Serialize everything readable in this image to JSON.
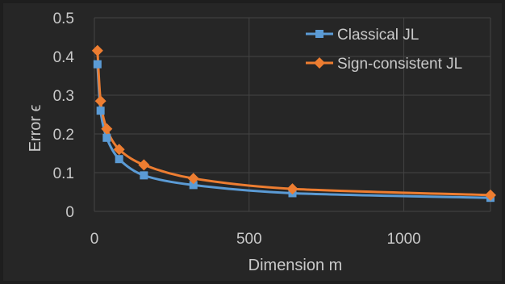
{
  "colors": {
    "background": "#262626",
    "outer_background": "#1e1e1e",
    "grid": "#444444",
    "text": "#c9c9c9"
  },
  "chart_data": {
    "type": "line",
    "title": "",
    "xlabel": "Dimension m",
    "ylabel": "Error ϵ",
    "xlim": [
      0,
      1280
    ],
    "ylim": [
      0,
      0.5
    ],
    "x_ticks": [
      0,
      500,
      1000
    ],
    "y_ticks": [
      0,
      0.1,
      0.2,
      0.3,
      0.4,
      0.5
    ],
    "x_tick_labels": [
      "0",
      "500",
      "1000"
    ],
    "y_tick_labels": [
      "0",
      "0.1",
      "0.2",
      "0.3",
      "0.4",
      "0.5"
    ],
    "grid": true,
    "legend_position": "top-right",
    "series": [
      {
        "name": "Classical JL",
        "color": "#5b9bd5",
        "marker": "square",
        "smooth": true,
        "points": [
          [
            10,
            0.38
          ],
          [
            20,
            0.26
          ],
          [
            40,
            0.19
          ],
          [
            80,
            0.135
          ],
          [
            160,
            0.093
          ],
          [
            320,
            0.068
          ],
          [
            640,
            0.047
          ],
          [
            1280,
            0.035
          ]
        ]
      },
      {
        "name": "Sign-consistent JL",
        "color": "#ed7d31",
        "marker": "diamond",
        "smooth": true,
        "points": [
          [
            10,
            0.415
          ],
          [
            20,
            0.285
          ],
          [
            40,
            0.213
          ],
          [
            80,
            0.16
          ],
          [
            160,
            0.12
          ],
          [
            320,
            0.085
          ],
          [
            640,
            0.058
          ],
          [
            1280,
            0.042
          ]
        ]
      }
    ]
  }
}
